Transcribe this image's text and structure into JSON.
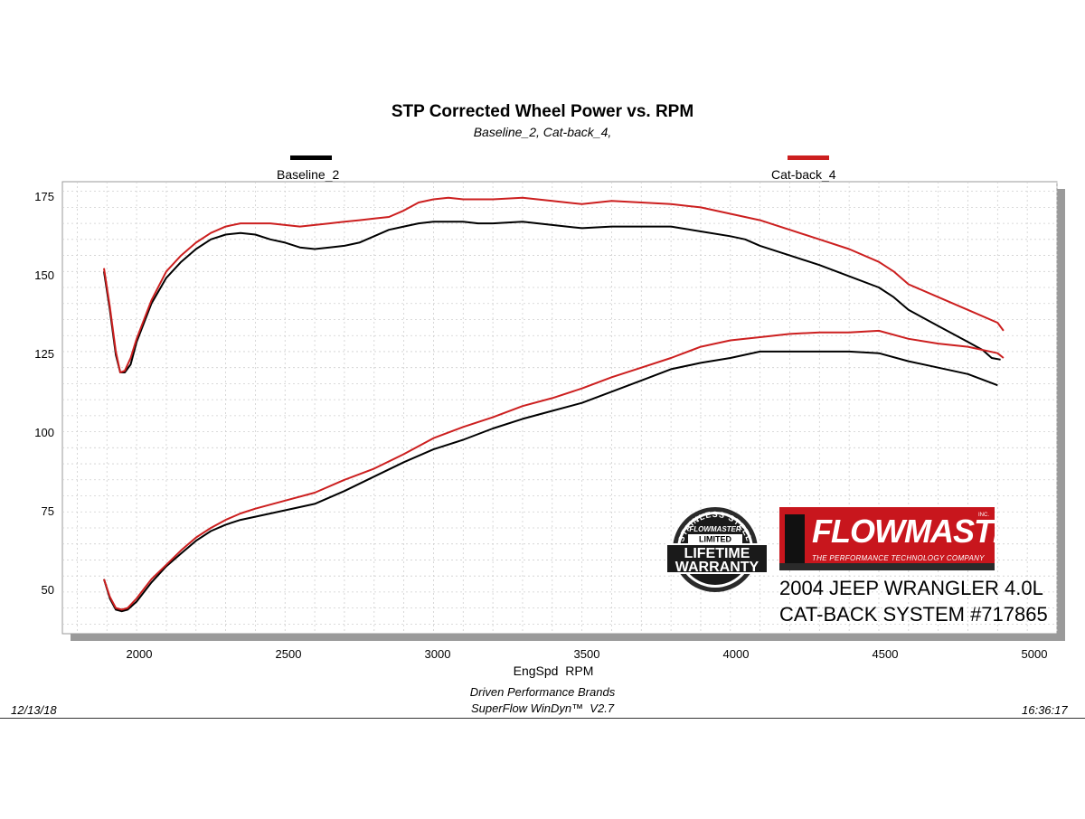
{
  "chart_data": {
    "type": "line",
    "title": "STP Corrected Wheel Power vs. RPM",
    "subtitle": "Baseline_2, Cat-back_4,",
    "xlabel": "EngSpd  RPM",
    "ylabel": "",
    "xlim": [
      1750,
      5100
    ],
    "ylim": [
      37,
      178
    ],
    "xticks": [
      2000,
      2500,
      3000,
      3500,
      4000,
      4500,
      5000
    ],
    "yticks": [
      50,
      75,
      100,
      125,
      150,
      175
    ],
    "grid": true,
    "legend_position": "top",
    "series": [
      {
        "name": "Baseline_2",
        "color": "#000000",
        "curves": [
          [
            [
              1890,
              150
            ],
            [
              1910,
              138
            ],
            [
              1930,
              124
            ],
            [
              1945,
              118.5
            ],
            [
              1960,
              118.5
            ],
            [
              1980,
              121
            ],
            [
              2000,
              128
            ],
            [
              2050,
              140
            ],
            [
              2100,
              148
            ],
            [
              2150,
              153
            ],
            [
              2200,
              157
            ],
            [
              2250,
              160
            ],
            [
              2300,
              161.5
            ],
            [
              2350,
              162
            ],
            [
              2400,
              161.5
            ],
            [
              2450,
              160
            ],
            [
              2500,
              159
            ],
            [
              2550,
              157.5
            ],
            [
              2600,
              157
            ],
            [
              2650,
              157.5
            ],
            [
              2700,
              158
            ],
            [
              2750,
              159
            ],
            [
              2800,
              161
            ],
            [
              2850,
              163
            ],
            [
              2900,
              164
            ],
            [
              2950,
              165
            ],
            [
              3000,
              165.5
            ],
            [
              3050,
              165.5
            ],
            [
              3100,
              165.5
            ],
            [
              3150,
              165
            ],
            [
              3200,
              165
            ],
            [
              3300,
              165.5
            ],
            [
              3400,
              164.5
            ],
            [
              3500,
              163.5
            ],
            [
              3600,
              164
            ],
            [
              3700,
              164
            ],
            [
              3800,
              164
            ],
            [
              3900,
              162.5
            ],
            [
              4000,
              161
            ],
            [
              4050,
              160
            ],
            [
              4100,
              158
            ],
            [
              4200,
              155
            ],
            [
              4300,
              152
            ],
            [
              4400,
              148.5
            ],
            [
              4500,
              145
            ],
            [
              4550,
              142
            ],
            [
              4600,
              138
            ],
            [
              4700,
              133
            ],
            [
              4800,
              128
            ],
            [
              4850,
              125.5
            ],
            [
              4880,
              123
            ],
            [
              4910,
              122.5
            ]
          ],
          [
            [
              1890,
              54
            ],
            [
              1910,
              48
            ],
            [
              1930,
              44.5
            ],
            [
              1950,
              44
            ],
            [
              1970,
              44.5
            ],
            [
              2000,
              47
            ],
            [
              2050,
              53
            ],
            [
              2100,
              58
            ],
            [
              2150,
              62
            ],
            [
              2200,
              66
            ],
            [
              2250,
              69
            ],
            [
              2300,
              71
            ],
            [
              2350,
              72.5
            ],
            [
              2400,
              73.5
            ],
            [
              2500,
              75.5
            ],
            [
              2600,
              77.5
            ],
            [
              2700,
              81.5
            ],
            [
              2800,
              86
            ],
            [
              2900,
              90.5
            ],
            [
              3000,
              94.5
            ],
            [
              3100,
              97.5
            ],
            [
              3200,
              101
            ],
            [
              3300,
              104
            ],
            [
              3400,
              106.5
            ],
            [
              3500,
              109
            ],
            [
              3600,
              112.5
            ],
            [
              3700,
              116
            ],
            [
              3800,
              119.5
            ],
            [
              3900,
              121.5
            ],
            [
              4000,
              123
            ],
            [
              4100,
              125
            ],
            [
              4200,
              125
            ],
            [
              4300,
              125
            ],
            [
              4400,
              125
            ],
            [
              4500,
              124.5
            ],
            [
              4600,
              122
            ],
            [
              4700,
              120
            ],
            [
              4800,
              118
            ],
            [
              4900,
              114.5
            ]
          ]
        ]
      },
      {
        "name": "Cat-back_4",
        "color": "#cc1f1f",
        "curves": [
          [
            [
              1890,
              151
            ],
            [
              1910,
              139
            ],
            [
              1930,
              125
            ],
            [
              1945,
              118.5
            ],
            [
              1960,
              119
            ],
            [
              1980,
              123
            ],
            [
              2000,
              129
            ],
            [
              2050,
              141
            ],
            [
              2100,
              150
            ],
            [
              2150,
              155
            ],
            [
              2200,
              159
            ],
            [
              2250,
              162
            ],
            [
              2300,
              164
            ],
            [
              2350,
              165
            ],
            [
              2400,
              165
            ],
            [
              2450,
              165
            ],
            [
              2500,
              164.5
            ],
            [
              2550,
              164
            ],
            [
              2600,
              164.5
            ],
            [
              2650,
              165
            ],
            [
              2700,
              165.5
            ],
            [
              2750,
              166
            ],
            [
              2800,
              166.5
            ],
            [
              2850,
              167
            ],
            [
              2900,
              169
            ],
            [
              2950,
              171.5
            ],
            [
              3000,
              172.5
            ],
            [
              3050,
              173
            ],
            [
              3100,
              172.5
            ],
            [
              3200,
              172.5
            ],
            [
              3300,
              173
            ],
            [
              3400,
              172
            ],
            [
              3500,
              171
            ],
            [
              3600,
              172
            ],
            [
              3700,
              171.5
            ],
            [
              3800,
              171
            ],
            [
              3900,
              170
            ],
            [
              4000,
              168
            ],
            [
              4100,
              166
            ],
            [
              4200,
              163
            ],
            [
              4300,
              160
            ],
            [
              4400,
              157
            ],
            [
              4500,
              153
            ],
            [
              4550,
              150
            ],
            [
              4600,
              146
            ],
            [
              4700,
              142
            ],
            [
              4800,
              138
            ],
            [
              4900,
              134
            ],
            [
              4920,
              131.5
            ]
          ],
          [
            [
              1890,
              54
            ],
            [
              1910,
              48.5
            ],
            [
              1930,
              45
            ],
            [
              1950,
              44.5
            ],
            [
              1970,
              45
            ],
            [
              2000,
              48
            ],
            [
              2050,
              54
            ],
            [
              2100,
              58.5
            ],
            [
              2150,
              63
            ],
            [
              2200,
              67
            ],
            [
              2250,
              70
            ],
            [
              2300,
              72.5
            ],
            [
              2350,
              74.5
            ],
            [
              2400,
              76
            ],
            [
              2500,
              78.5
            ],
            [
              2600,
              81
            ],
            [
              2700,
              85
            ],
            [
              2800,
              88.5
            ],
            [
              2900,
              93
            ],
            [
              3000,
              98
            ],
            [
              3100,
              101.5
            ],
            [
              3200,
              104.5
            ],
            [
              3300,
              108
            ],
            [
              3400,
              110.5
            ],
            [
              3500,
              113.5
            ],
            [
              3600,
              117
            ],
            [
              3700,
              120
            ],
            [
              3800,
              123
            ],
            [
              3900,
              126.5
            ],
            [
              4000,
              128.5
            ],
            [
              4100,
              129.5
            ],
            [
              4200,
              130.5
            ],
            [
              4300,
              131
            ],
            [
              4400,
              131
            ],
            [
              4500,
              131.5
            ],
            [
              4600,
              129
            ],
            [
              4700,
              127.5
            ],
            [
              4800,
              126.5
            ],
            [
              4900,
              124.5
            ],
            [
              4920,
              123
            ]
          ]
        ]
      }
    ]
  },
  "footer": {
    "date": "12/13/18",
    "time": "16:36:17",
    "company": "Driven Performance Brands",
    "software": "SuperFlow WinDyn™  V2.7"
  },
  "branding": {
    "warranty_lines": [
      "STAINLESS STEEL",
      "FLOWMASTER",
      "LIMITED",
      "LIFETIME",
      "WARRANTY"
    ],
    "brand_name": "FLOWMASTER",
    "brand_tagline": "THE PERFORMANCE TECHNOLOGY COMPANY",
    "brand_mark": "INC.",
    "product_line1": "2004 JEEP WRANGLER 4.0L",
    "product_line2": "CAT-BACK SYSTEM #717865"
  }
}
